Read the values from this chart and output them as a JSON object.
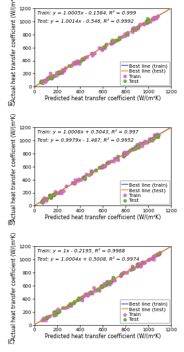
{
  "subplots": [
    {
      "label": "(a)",
      "train_eq": "Train: y = 1.0005x - 0.1584, R² = 0.999",
      "test_eq": "Test: y = 1.0014x - 0.546, R² = 0.9992",
      "train_slope": 1.0005,
      "train_intercept": -0.1584,
      "test_slope": 1.0014,
      "test_intercept": -0.546
    },
    {
      "label": "(b)",
      "train_eq": "Train: y = 1.0008x + 0.5043, R² = 0.997",
      "test_eq": "Test: y = 0.9979x - 1.487, R² = 0.9952",
      "train_slope": 1.0008,
      "train_intercept": 0.5043,
      "test_slope": 0.9979,
      "test_intercept": -1.487
    },
    {
      "label": "(c)",
      "train_eq": "Train: y = 1x - 0.2195, R² = 0.9968",
      "test_eq": "Test: y = 1.0004x + 0.5008, R² = 0.9974",
      "train_slope": 1.0,
      "train_intercept": -0.2195,
      "test_slope": 1.0004,
      "test_intercept": 0.5008
    }
  ],
  "xlim": [
    0,
    1200
  ],
  "ylim": [
    0,
    1200
  ],
  "xticks": [
    0,
    200,
    400,
    600,
    800,
    1000,
    1200
  ],
  "yticks": [
    0,
    200,
    400,
    600,
    800,
    1000,
    1200
  ],
  "xlabel": "Predicted heat transfer coefficient (W/(m²K)",
  "ylabel": "Actual heat transfer coefficient (W/(m²K)",
  "train_color": "#d070d0",
  "test_color": "#55bb33",
  "train_edge_color": "#aa44aa",
  "test_edge_color": "#338811",
  "bestline_train_color": "#3355ee",
  "bestline_test_color": "#ff8800",
  "marker_size": 5,
  "legend_labels": [
    "Train",
    "Test",
    "Best line (train)",
    "Best line (test)"
  ],
  "annotation_fontsize": 5.2,
  "axis_label_fontsize": 5.5,
  "tick_fontsize": 5.0,
  "legend_fontsize": 5.2
}
